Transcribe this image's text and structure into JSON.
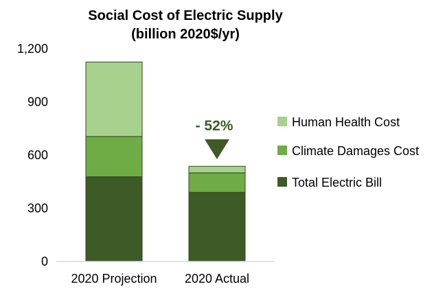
{
  "chart_data": {
    "type": "bar",
    "stacked": true,
    "title": "Social Cost of Electric Supply",
    "subtitle": "(billion 2020$/yr)",
    "categories": [
      "2020 Projection",
      "2020 Actual"
    ],
    "series": [
      {
        "name": "Total Electric Bill",
        "values": [
          478,
          390
        ],
        "color": "#3d5a27"
      },
      {
        "name": "Climate Damages Cost",
        "values": [
          227,
          110
        ],
        "color": "#6fac46"
      },
      {
        "name": "Human Health Cost",
        "values": [
          420,
          37
        ],
        "color": "#a9d18e"
      }
    ],
    "ylim": [
      0,
      1200
    ],
    "yticks": [
      "0",
      "300",
      "600",
      "900",
      "1,200"
    ],
    "grid": false,
    "legend_position": "right",
    "annotation": {
      "text": "- 52%",
      "target_category": "2020 Actual",
      "color": "#3d5a27",
      "marker": "down-triangle"
    }
  }
}
